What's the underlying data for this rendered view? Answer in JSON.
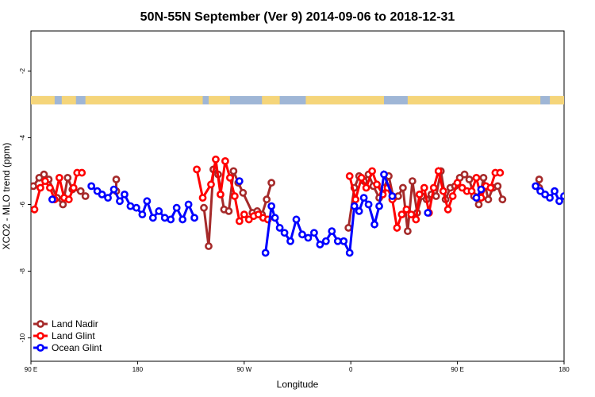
{
  "chart_data": {
    "type": "line",
    "title": "50N-55N September (Ver 9)   2014-09-06 to 2018-12-31",
    "xlabel": "Longitude",
    "ylabel": "XCO2 - MLO trend (ppm)",
    "x_ticks": [
      {
        "value": 90,
        "label": "90 E"
      },
      {
        "value": 180,
        "label": "180"
      },
      {
        "value": 270,
        "label": "90 W"
      },
      {
        "value": 360,
        "label": "0"
      },
      {
        "value": 450,
        "label": "90 E"
      },
      {
        "value": 540,
        "label": "180"
      }
    ],
    "y_ticks": [
      {
        "value": -2,
        "label": "-2"
      },
      {
        "value": -4,
        "label": "-4"
      },
      {
        "value": -6,
        "label": "-6"
      },
      {
        "value": -8,
        "label": "-8"
      },
      {
        "value": -10,
        "label": "-10"
      }
    ],
    "xlim": [
      90,
      540
    ],
    "ylim": [
      -10.7,
      -0.8
    ],
    "grid": false,
    "legend_position": "bottom-left",
    "land_band": {
      "y_top": -2.75,
      "y_bottom": -3.0,
      "ocean_color": "#9fb6d6",
      "land_color": "#f5d57a"
    },
    "series": [
      {
        "name": "Land Nadir",
        "color": "#a52a2a",
        "points": [
          [
            92,
            -5.45
          ],
          [
            97,
            -5.2
          ],
          [
            101,
            -5.1
          ],
          [
            105,
            -5.25
          ],
          [
            112,
            -5.8
          ],
          [
            117,
            -6.0
          ],
          [
            121,
            -5.2
          ],
          [
            125,
            -5.55
          ],
          [
            132,
            -5.6
          ],
          [
            136,
            -5.75
          ],
          [
            162,
            -5.25
          ],
          [
            162,
            -5.6
          ],
          [
            236,
            -6.1
          ],
          [
            240,
            -7.25
          ],
          [
            244,
            -4.95
          ],
          [
            248,
            -5.1
          ],
          [
            253,
            -6.15
          ],
          [
            257,
            -6.2
          ],
          [
            261,
            -5.0
          ],
          [
            265,
            -5.35
          ],
          [
            269,
            -5.65
          ],
          [
            277,
            -6.25
          ],
          [
            281,
            -6.2
          ],
          [
            285,
            -6.3
          ],
          [
            289,
            -5.85
          ],
          [
            293,
            -5.35
          ],
          [
            358,
            -6.7
          ],
          [
            363,
            -5.5
          ],
          [
            367,
            -5.15
          ],
          [
            371,
            -5.3
          ],
          [
            375,
            -5.1
          ],
          [
            379,
            -5.45
          ],
          [
            384,
            -5.8
          ],
          [
            388,
            -5.5
          ],
          [
            392,
            -5.15
          ],
          [
            396,
            -5.8
          ],
          [
            400,
            -5.75
          ],
          [
            404,
            -5.5
          ],
          [
            408,
            -6.8
          ],
          [
            412,
            -5.3
          ],
          [
            416,
            -6.25
          ],
          [
            420,
            -5.75
          ],
          [
            424,
            -5.85
          ],
          [
            428,
            -5.7
          ],
          [
            432,
            -5.75
          ],
          [
            436,
            -5.0
          ],
          [
            440,
            -5.85
          ],
          [
            444,
            -5.5
          ],
          [
            448,
            -5.45
          ],
          [
            452,
            -5.2
          ],
          [
            456,
            -5.1
          ],
          [
            460,
            -5.25
          ],
          [
            464,
            -5.75
          ],
          [
            468,
            -6.0
          ],
          [
            472,
            -5.2
          ],
          [
            476,
            -5.85
          ],
          [
            480,
            -5.5
          ],
          [
            484,
            -5.45
          ],
          [
            488,
            -5.85
          ],
          [
            519,
            -5.25
          ],
          [
            519,
            -5.5
          ]
        ]
      },
      {
        "name": "Land Glint",
        "color": "#ff0000",
        "points": [
          [
            93,
            -6.15
          ],
          [
            98,
            -5.5
          ],
          [
            102,
            -5.3
          ],
          [
            106,
            -5.5
          ],
          [
            110,
            -5.85
          ],
          [
            114,
            -5.2
          ],
          [
            118,
            -5.8
          ],
          [
            122,
            -5.85
          ],
          [
            126,
            -5.5
          ],
          [
            129,
            -5.05
          ],
          [
            133,
            -5.05
          ],
          [
            230,
            -4.95
          ],
          [
            235,
            -5.8
          ],
          [
            242,
            -5.4
          ],
          [
            246,
            -4.65
          ],
          [
            250,
            -5.7
          ],
          [
            254,
            -4.7
          ],
          [
            258,
            -5.2
          ],
          [
            262,
            -5.75
          ],
          [
            266,
            -6.5
          ],
          [
            270,
            -6.3
          ],
          [
            274,
            -6.45
          ],
          [
            278,
            -6.35
          ],
          [
            282,
            -6.3
          ],
          [
            286,
            -6.4
          ],
          [
            290,
            -6.45
          ],
          [
            359,
            -5.15
          ],
          [
            364,
            -5.85
          ],
          [
            369,
            -5.2
          ],
          [
            373,
            -5.5
          ],
          [
            378,
            -5.0
          ],
          [
            382,
            -5.4
          ],
          [
            387,
            -5.7
          ],
          [
            391,
            -5.5
          ],
          [
            395,
            -5.85
          ],
          [
            399,
            -6.7
          ],
          [
            403,
            -6.3
          ],
          [
            407,
            -6.15
          ],
          [
            411,
            -6.3
          ],
          [
            415,
            -6.45
          ],
          [
            418,
            -5.7
          ],
          [
            422,
            -5.5
          ],
          [
            426,
            -6.25
          ],
          [
            430,
            -5.5
          ],
          [
            434,
            -5.0
          ],
          [
            438,
            -5.6
          ],
          [
            442,
            -6.15
          ],
          [
            446,
            -5.75
          ],
          [
            450,
            -5.35
          ],
          [
            454,
            -5.5
          ],
          [
            458,
            -5.6
          ],
          [
            462,
            -5.6
          ],
          [
            466,
            -5.2
          ],
          [
            470,
            -5.8
          ],
          [
            474,
            -5.45
          ],
          [
            478,
            -5.5
          ],
          [
            482,
            -5.05
          ],
          [
            486,
            -5.05
          ]
        ]
      },
      {
        "name": "Ocean Glint",
        "color": "#0000ff",
        "points": [
          [
            108,
            -5.85
          ],
          [
            141,
            -5.45
          ],
          [
            146,
            -5.6
          ],
          [
            150,
            -5.7
          ],
          [
            155,
            -5.8
          ],
          [
            160,
            -5.55
          ],
          [
            165,
            -5.9
          ],
          [
            169,
            -5.7
          ],
          [
            174,
            -6.05
          ],
          [
            179,
            -6.1
          ],
          [
            184,
            -6.3
          ],
          [
            188,
            -5.9
          ],
          [
            193,
            -6.4
          ],
          [
            198,
            -6.2
          ],
          [
            203,
            -6.4
          ],
          [
            208,
            -6.45
          ],
          [
            213,
            -6.1
          ],
          [
            218,
            -6.45
          ],
          [
            223,
            -6.0
          ],
          [
            228,
            -6.4
          ],
          [
            266,
            -5.3
          ],
          [
            288,
            -7.45
          ],
          [
            293,
            -6.05
          ],
          [
            296,
            -6.4
          ],
          [
            300,
            -6.7
          ],
          [
            304,
            -6.85
          ],
          [
            309,
            -7.1
          ],
          [
            314,
            -6.45
          ],
          [
            319,
            -6.9
          ],
          [
            324,
            -7.0
          ],
          [
            329,
            -6.85
          ],
          [
            334,
            -7.2
          ],
          [
            339,
            -7.1
          ],
          [
            344,
            -6.8
          ],
          [
            349,
            -7.1
          ],
          [
            354,
            -7.1
          ],
          [
            359,
            -7.45
          ],
          [
            363,
            -6.05
          ],
          [
            367,
            -6.2
          ],
          [
            371,
            -5.8
          ],
          [
            375,
            -6.0
          ],
          [
            380,
            -6.6
          ],
          [
            384,
            -6.05
          ],
          [
            388,
            -5.1
          ],
          [
            395,
            -5.75
          ],
          [
            425,
            -6.25
          ],
          [
            466,
            -5.8
          ],
          [
            470,
            -5.55
          ],
          [
            516,
            -5.45
          ],
          [
            520,
            -5.6
          ],
          [
            524,
            -5.7
          ],
          [
            528,
            -5.8
          ],
          [
            532,
            -5.6
          ],
          [
            536,
            -5.9
          ],
          [
            540,
            -5.75
          ],
          [
            545,
            -6.05
          ]
        ]
      }
    ]
  }
}
